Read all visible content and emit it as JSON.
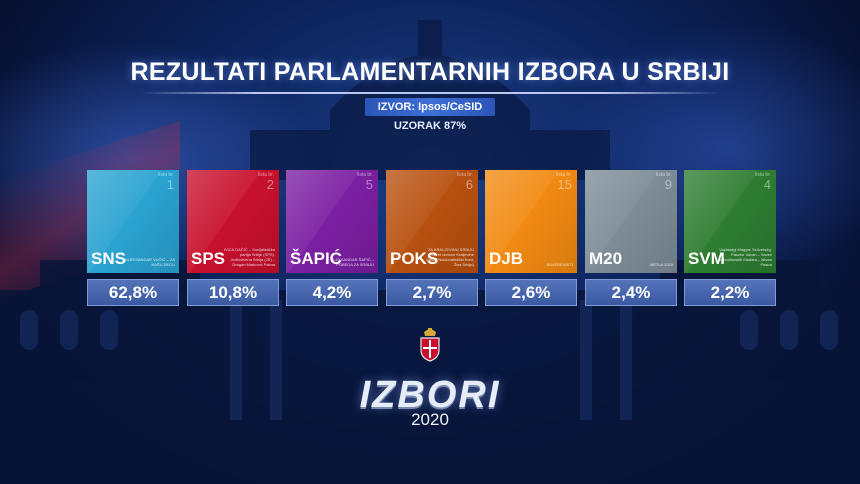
{
  "title": "REZULTATI PARLAMENTARNIH IZBORA U SRBIJI",
  "source": "IZVOR: Ipsos/CeSID",
  "sample": "UZORAK 87%",
  "list_label": "lista br.",
  "parties": [
    {
      "abbr": "SNS",
      "list_no": "1",
      "leader": "ALEKSANDAR VUČIĆ – ZA NAŠU DECU",
      "percent": "62,8%",
      "color": "#2aa3d1"
    },
    {
      "abbr": "SPS",
      "list_no": "2",
      "leader": "IVICA DAČIĆ – Socijalistička partija Srbije (SPS), Jedinstvena Srbija (JS) – Dragan Marković Palma",
      "percent": "10,8%",
      "color": "#c8102e"
    },
    {
      "abbr": "ŠAPIĆ",
      "list_no": "5",
      "leader": "ALEKSANDAR ŠAPIĆ – POBEDA ZA SRBIJU",
      "percent": "4,2%",
      "color": "#7b1fa2"
    },
    {
      "abbr": "POKS",
      "list_no": "6",
      "leader": "ZA KRALJEVINU SRBIJU (Pokret obnove Kraljevine Srbije, Nacionalistički front, Živa Srbija)",
      "percent": "2,7%",
      "color": "#b8500f"
    },
    {
      "abbr": "DJB",
      "list_no": "15",
      "leader": "SUVERENISTI",
      "percent": "2,6%",
      "color": "#f28a12"
    },
    {
      "abbr": "M20",
      "list_no": "9",
      "leader": "METLA 2020",
      "percent": "2,4%",
      "color": "#7d8c96"
    },
    {
      "abbr": "SVM",
      "list_no": "4",
      "leader": "Vajdasági Magyar Szövetség-Pásztor István – Savez vojvođanskih Mađara – Ištvan Pastor",
      "percent": "2,2%",
      "color": "#2e7d32"
    }
  ],
  "logo_text": "IZBORI",
  "year": "2020",
  "chart_data": {
    "type": "bar",
    "title": "REZULTATI PARLAMENTARNIH IZBORA U SRBIJI",
    "categories": [
      "SNS",
      "SPS",
      "ŠAPIĆ",
      "POKS",
      "DJB",
      "M20",
      "SVM"
    ],
    "values": [
      62.8,
      10.8,
      4.2,
      2.7,
      2.6,
      2.4,
      2.2
    ]
  }
}
